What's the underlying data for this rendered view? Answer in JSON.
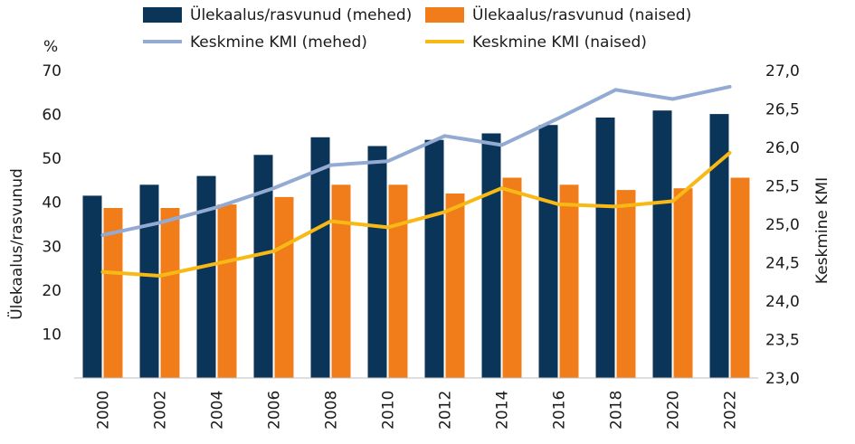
{
  "chart_data": {
    "type": "bar",
    "categories": [
      "2000",
      "2002",
      "2004",
      "2006",
      "2008",
      "2010",
      "2012",
      "2014",
      "2016",
      "2018",
      "2020",
      "2022"
    ],
    "series": [
      {
        "name": "Ülekaalus/rasvunud (mehed)",
        "kind": "bar",
        "axis": "left",
        "color": "#0b3558",
        "values": [
          41.5,
          44.0,
          46.0,
          50.8,
          54.8,
          52.8,
          54.2,
          55.7,
          57.6,
          59.3,
          60.9,
          60.1
        ]
      },
      {
        "name": "Ülekaalus/rasvunud (naised)",
        "kind": "bar",
        "axis": "left",
        "color": "#f07d1a",
        "values": [
          38.7,
          38.7,
          39.5,
          41.2,
          44.0,
          44.0,
          42.0,
          45.6,
          44.0,
          42.8,
          43.2,
          45.6
        ]
      },
      {
        "name": "Keskmine KMI (mehed)",
        "kind": "line",
        "axis": "right",
        "color": "#93abd3",
        "values": [
          24.86,
          25.02,
          25.22,
          25.47,
          25.77,
          25.82,
          26.15,
          26.03,
          26.38,
          26.75,
          26.63,
          26.79
        ]
      },
      {
        "name": "Keskmine KMI (naised)",
        "kind": "line",
        "axis": "right",
        "color": "#f8b916",
        "values": [
          24.38,
          24.33,
          24.49,
          24.65,
          25.04,
          24.96,
          25.16,
          25.47,
          25.26,
          25.23,
          25.3,
          25.93
        ]
      }
    ],
    "y_left": {
      "label": "Ülekaalus/rasvunud",
      "unit": "%",
      "range": [
        0,
        70
      ],
      "ticks": [
        "10",
        "20",
        "30",
        "40",
        "50",
        "60",
        "70"
      ]
    },
    "y_right": {
      "label": "Keskmine KMI",
      "range": [
        23.0,
        27.0
      ],
      "ticks": [
        "23,0",
        "23,5",
        "24,0",
        "24,5",
        "25,0",
        "25,5",
        "26,0",
        "26,5",
        "27,0"
      ]
    },
    "grid": false,
    "legend_position": "top"
  }
}
